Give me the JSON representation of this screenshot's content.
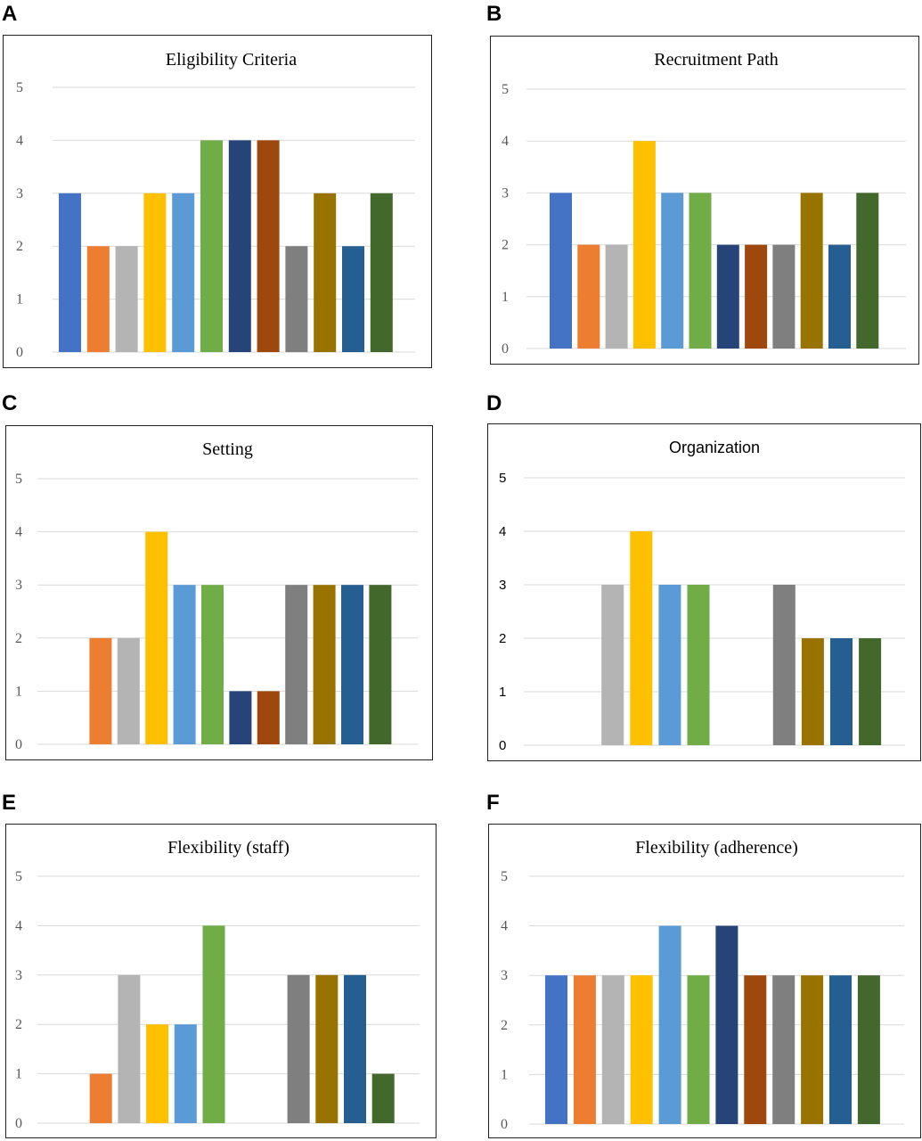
{
  "colors": [
    "#4472c4",
    "#ed7d31",
    "#b4b4b4",
    "#ffc000",
    "#5b9bd5",
    "#70ad47",
    "#264478",
    "#9e480e",
    "#7f7f7f",
    "#997300",
    "#255e91",
    "#43682b"
  ],
  "chart_data": [
    {
      "letter": "A",
      "type": "bar",
      "title": "Eligibility Criteria",
      "font": "serif",
      "ylim": [
        0,
        5
      ],
      "yticks": [
        "0",
        "1",
        "2",
        "3",
        "4",
        "5"
      ],
      "grid": true,
      "values": [
        3,
        2,
        2,
        3,
        3,
        4,
        4,
        4,
        2,
        3,
        2,
        3
      ]
    },
    {
      "letter": "B",
      "type": "bar",
      "title": "Recruitment Path",
      "font": "serif",
      "ylim": [
        0,
        5
      ],
      "yticks": [
        "0",
        "1",
        "2",
        "3",
        "4",
        "5"
      ],
      "grid": true,
      "values": [
        3,
        2,
        2,
        4,
        3,
        3,
        2,
        2,
        2,
        3,
        2,
        3
      ]
    },
    {
      "letter": "C",
      "type": "bar",
      "title": "Setting",
      "font": "serif",
      "ylim": [
        0,
        5
      ],
      "yticks": [
        "0",
        "1",
        "2",
        "3",
        "4",
        "5"
      ],
      "grid": true,
      "values": [
        0,
        2,
        2,
        4,
        3,
        3,
        1,
        1,
        3,
        3,
        3,
        3
      ]
    },
    {
      "letter": "D",
      "type": "bar",
      "title": "Organization",
      "font": "sans",
      "ylim": [
        0,
        5
      ],
      "yticks": [
        "0",
        "1",
        "2",
        "3",
        "4",
        "5"
      ],
      "grid": true,
      "values": [
        0,
        0,
        3,
        4,
        3,
        3,
        0,
        0,
        3,
        2,
        2,
        2
      ]
    },
    {
      "letter": "E",
      "type": "bar",
      "title": "Flexibility (staff)",
      "font": "serif",
      "ylim": [
        0,
        5
      ],
      "yticks": [
        "0",
        "1",
        "2",
        "3",
        "4",
        "5"
      ],
      "grid": true,
      "values": [
        0,
        1,
        3,
        2,
        2,
        4,
        0,
        0,
        3,
        3,
        3,
        1
      ]
    },
    {
      "letter": "F",
      "type": "bar",
      "title": "Flexibility (adherence)",
      "font": "serif",
      "ylim": [
        0,
        5
      ],
      "yticks": [
        "0",
        "1",
        "2",
        "3",
        "4",
        "5"
      ],
      "grid": true,
      "values": [
        3,
        3,
        3,
        3,
        4,
        3,
        4,
        3,
        3,
        3,
        3,
        3
      ]
    }
  ]
}
